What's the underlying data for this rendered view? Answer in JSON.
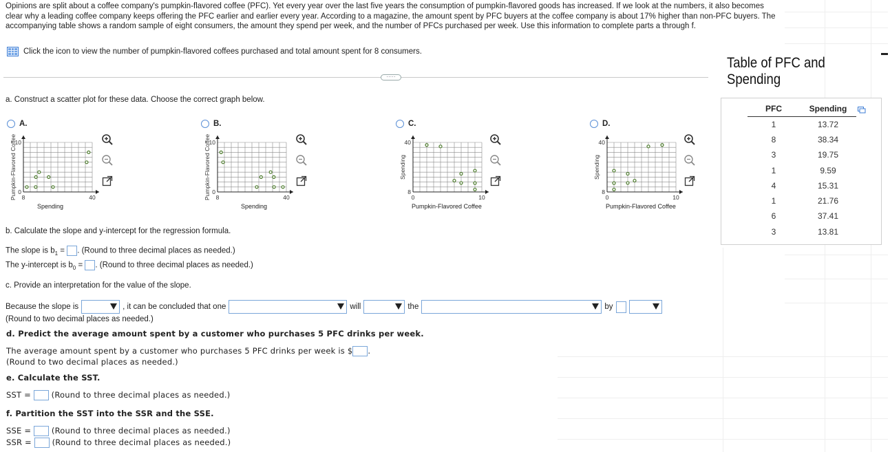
{
  "intro_text": "Opinions are split about a coffee company's pumpkin-flavored coffee (PFC). Yet every year over the last five years the consumption of pumpkin-flavored goods has increased. If we look at the numbers, it also becomes clear why a leading coffee company keeps offering the PFC earlier and earlier every year. According to a magazine, the amount spent by PFC buyers at the coffee company is about 17% higher than non-PFC buyers. The accompanying table shows a random sample of eight consumers, the amount they spend per week, and the number of PFCs purchased per week. Use this information to complete parts a through f.",
  "icon_link_text": "Click the icon to view the number of pumpkin-flavored coffees purchased and total amount spent for 8 consumers.",
  "ellipsis": "·····",
  "part_a": {
    "prompt": "a. Construct a scatter plot for these data. Choose the correct graph below.",
    "options": [
      {
        "letter": "A.",
        "xlabel": "Spending",
        "ylabel": "Pumpkin-Flavored Coffee",
        "y_top": "10",
        "y_bottom": "0",
        "x_left": "8",
        "x_right": "40"
      },
      {
        "letter": "B.",
        "xlabel": "Spending",
        "ylabel": "Pumpkin-Flavored Coffee",
        "y_top": "10",
        "y_bottom": "0",
        "x_left": "8",
        "x_right": "40"
      },
      {
        "letter": "C.",
        "xlabel": "Pumpkin-Flavored Coffee",
        "ylabel": "Spending",
        "y_top": "40",
        "y_bottom": "8",
        "x_left": "0",
        "x_right": "10"
      },
      {
        "letter": "D.",
        "xlabel": "Pumpkin-Flavored Coffee",
        "ylabel": "Spending",
        "y_top": "40",
        "y_bottom": "8",
        "x_left": "0",
        "x_right": "10"
      }
    ]
  },
  "part_b": {
    "prompt": "b. Calculate the slope and y-intercept for the regression formula.",
    "slope_label": "The slope is b",
    "slope_sub": "1",
    "slope_eq": " =",
    "slope_note": ". (Round to three decimal places as needed.)",
    "intercept_label": "The y-intercept is b",
    "intercept_sub": "0",
    "intercept_eq": " =",
    "intercept_note": ". (Round to three decimal places as needed.)"
  },
  "part_c": {
    "prompt": "c. Provide an interpretation for the value of the slope.",
    "s1": "Because the slope is",
    "s2": ", it can be concluded that one",
    "s3": "will",
    "s4": "the",
    "s5": "by",
    "note": "(Round to two decimal places as needed.)"
  },
  "part_d": {
    "prompt": "d. Predict the average amount spent by a customer who purchases 5 PFC drinks per week.",
    "answer_label": "The average amount spent by a customer who purchases 5 PFC drinks per week is $",
    "answer_end": ".",
    "note": "(Round to two decimal places as needed.)"
  },
  "part_e": {
    "prompt": "e. Calculate the SST.",
    "label": "SST =",
    "note": "(Round to three decimal places as needed.)"
  },
  "part_f": {
    "prompt": "f. Partition the SST into the SSR and the SSE.",
    "sse_label": "SSE =",
    "sse_note": "(Round to three decimal places as needed.)",
    "ssr_label": "SSR =",
    "ssr_note": "(Round to three decimal places as needed.)"
  },
  "table_panel": {
    "title": "Table of PFC and Spending",
    "headers": [
      "PFC",
      "Spending"
    ],
    "rows": [
      [
        "1",
        "13.72"
      ],
      [
        "8",
        "38.34"
      ],
      [
        "3",
        "19.75"
      ],
      [
        "1",
        "9.59"
      ],
      [
        "4",
        "15.31"
      ],
      [
        "1",
        "21.76"
      ],
      [
        "6",
        "37.41"
      ],
      [
        "3",
        "13.81"
      ]
    ]
  },
  "colors": {
    "accent": "#3b7bd4",
    "point": "#4b7a2a",
    "grid": "#8a8a8a"
  }
}
